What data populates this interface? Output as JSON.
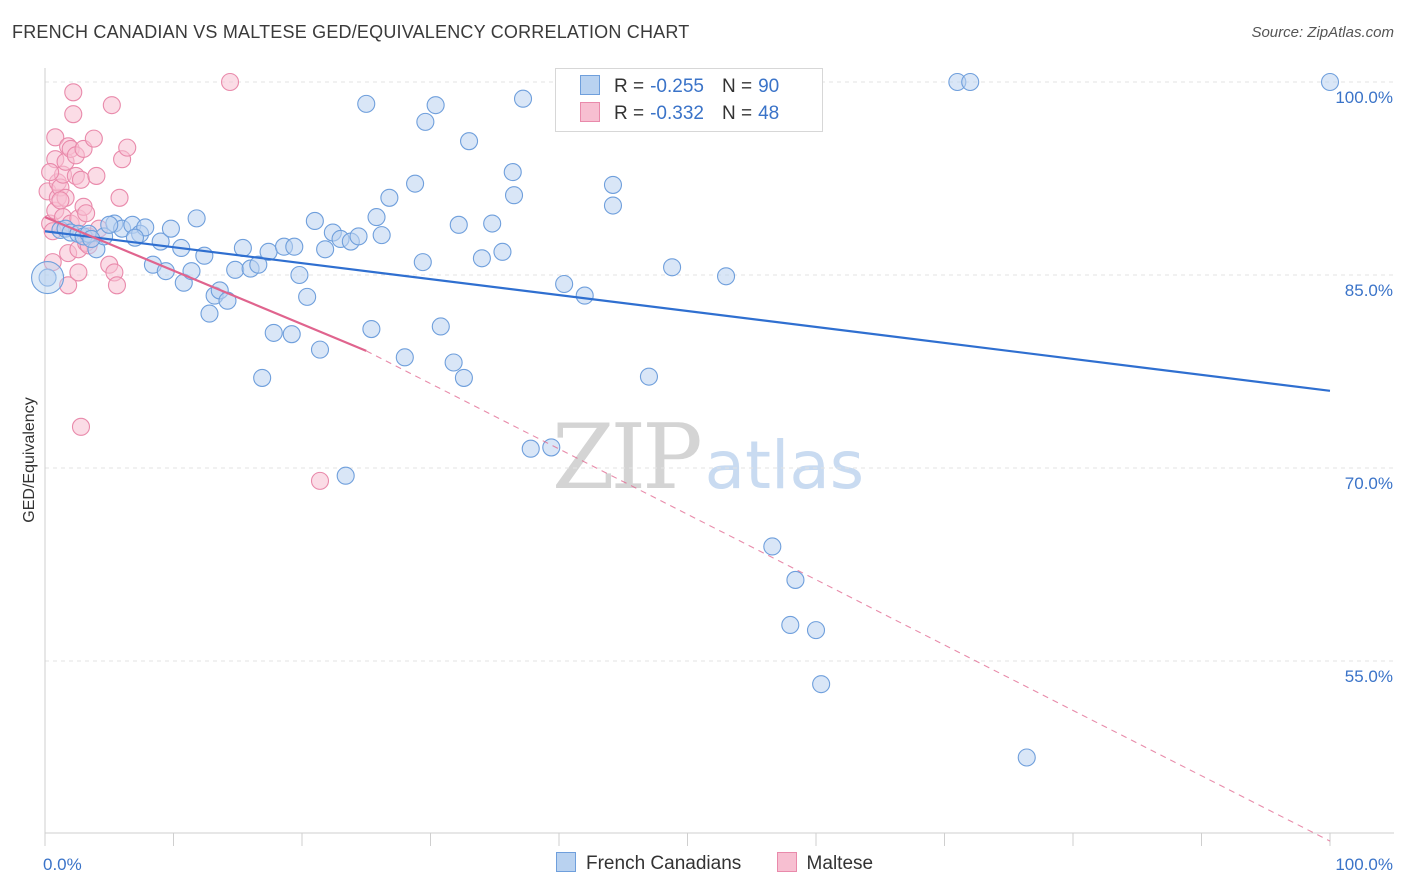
{
  "title": "FRENCH CANADIAN VS MALTESE GED/EQUIVALENCY CORRELATION CHART",
  "source": "Source: ZipAtlas.com",
  "watermark": {
    "zip": "ZIP",
    "atlas": "atlas"
  },
  "legend": {
    "rows": [
      {
        "r_label": "R =",
        "r_value": "-0.255",
        "n_label": "N =",
        "n_value": "90"
      },
      {
        "r_label": "R =",
        "r_value": "-0.332",
        "n_label": "N =",
        "n_value": "48"
      }
    ]
  },
  "bottom_legend": [
    "French Canadians",
    "Maltese"
  ],
  "colors": {
    "blue_fill": "#b9d2f0",
    "blue_stroke": "#6f9fdc",
    "blue_line": "#2f6fd0",
    "pink_fill": "#f7bfd1",
    "pink_stroke": "#e98aab",
    "pink_line": "#e0648e",
    "tick_label": "#3a73c8",
    "grid": "#e3e3e3"
  },
  "chart_data": {
    "type": "scatter",
    "title": "FRENCH CANADIAN VS MALTESE GED/EQUIVALENCY CORRELATION CHART",
    "xlabel": "",
    "ylabel": "GED/Equivalency",
    "xlim": [
      0,
      100
    ],
    "ylim": [
      40,
      101.5
    ],
    "x_tick_labels": [
      "0.0%",
      "100.0%"
    ],
    "y_ticks": [
      100,
      85,
      70,
      55
    ],
    "y_tick_labels": [
      "100.0%",
      "85.0%",
      "70.0%",
      "55.0%"
    ],
    "grid": true,
    "legend_position": "top-center",
    "series": [
      {
        "name": "French Canadians",
        "R": -0.255,
        "N": 90,
        "trend": {
          "x": [
            0,
            100
          ],
          "y": [
            88.4,
            76.0
          ],
          "style": "solid"
        },
        "points": [
          [
            0.2,
            84.8
          ],
          [
            1.2,
            88.5
          ],
          [
            1.6,
            88.6
          ],
          [
            2.0,
            88.3
          ],
          [
            2.6,
            88.2
          ],
          [
            3.0,
            88.0
          ],
          [
            3.4,
            88.2
          ],
          [
            4.0,
            87.0
          ],
          [
            4.6,
            88.0
          ],
          [
            5.4,
            89.0
          ],
          [
            6.0,
            88.6
          ],
          [
            6.8,
            88.9
          ],
          [
            7.4,
            88.2
          ],
          [
            7.8,
            88.7
          ],
          [
            8.4,
            85.8
          ],
          [
            9.0,
            87.6
          ],
          [
            9.4,
            85.3
          ],
          [
            9.8,
            88.6
          ],
          [
            10.6,
            87.1
          ],
          [
            10.8,
            84.4
          ],
          [
            11.4,
            85.3
          ],
          [
            11.8,
            89.4
          ],
          [
            12.4,
            86.5
          ],
          [
            12.8,
            82.0
          ],
          [
            13.2,
            83.4
          ],
          [
            13.6,
            83.8
          ],
          [
            14.2,
            83.0
          ],
          [
            14.8,
            85.4
          ],
          [
            15.4,
            87.1
          ],
          [
            16.0,
            85.5
          ],
          [
            16.6,
            85.8
          ],
          [
            16.9,
            77.0
          ],
          [
            17.4,
            86.8
          ],
          [
            17.8,
            80.5
          ],
          [
            18.6,
            87.2
          ],
          [
            19.2,
            80.4
          ],
          [
            19.4,
            87.2
          ],
          [
            19.8,
            85.0
          ],
          [
            20.4,
            83.3
          ],
          [
            21.0,
            89.2
          ],
          [
            21.4,
            79.2
          ],
          [
            21.8,
            87.0
          ],
          [
            22.4,
            88.3
          ],
          [
            23.0,
            87.8
          ],
          [
            23.4,
            69.4
          ],
          [
            23.8,
            87.6
          ],
          [
            24.4,
            88.0
          ],
          [
            25.0,
            98.3
          ],
          [
            25.4,
            80.8
          ],
          [
            25.8,
            89.5
          ],
          [
            26.2,
            88.1
          ],
          [
            26.8,
            91.0
          ],
          [
            28.0,
            78.6
          ],
          [
            28.8,
            92.1
          ],
          [
            29.4,
            86.0
          ],
          [
            29.6,
            96.9
          ],
          [
            30.4,
            98.2
          ],
          [
            30.8,
            81.0
          ],
          [
            31.8,
            78.2
          ],
          [
            32.2,
            88.9
          ],
          [
            32.6,
            77.0
          ],
          [
            33.0,
            95.4
          ],
          [
            34.0,
            86.3
          ],
          [
            34.8,
            89.0
          ],
          [
            35.6,
            86.8
          ],
          [
            36.4,
            93.0
          ],
          [
            36.5,
            91.2
          ],
          [
            37.2,
            98.7
          ],
          [
            37.8,
            71.5
          ],
          [
            39.4,
            71.6
          ],
          [
            40.4,
            84.3
          ],
          [
            42.0,
            83.4
          ],
          [
            44.2,
            92.0
          ],
          [
            44.2,
            90.4
          ],
          [
            47.0,
            77.1
          ],
          [
            47.8,
            100.0
          ],
          [
            48.8,
            85.6
          ],
          [
            53.0,
            84.9
          ],
          [
            56.6,
            63.9
          ],
          [
            58.0,
            57.8
          ],
          [
            58.4,
            61.3
          ],
          [
            60.0,
            57.4
          ],
          [
            60.4,
            53.2
          ],
          [
            71.0,
            100.0
          ],
          [
            72.0,
            100.0
          ],
          [
            76.4,
            47.5
          ],
          [
            100.0,
            100.0
          ],
          [
            3.6,
            87.8
          ],
          [
            5.0,
            88.9
          ],
          [
            7.0,
            87.9
          ]
        ]
      },
      {
        "name": "Maltese",
        "R": -0.332,
        "N": 48,
        "trend": {
          "x": [
            0,
            25
          ],
          "y": [
            89.5,
            79.1
          ],
          "style": "solid",
          "extended_to": [
            100,
            41.0
          ],
          "extended_style": "dashed"
        },
        "points": [
          [
            0.2,
            91.5
          ],
          [
            0.4,
            89.0
          ],
          [
            0.6,
            88.4
          ],
          [
            0.8,
            90.0
          ],
          [
            0.8,
            94.0
          ],
          [
            0.8,
            95.7
          ],
          [
            1.0,
            91.0
          ],
          [
            1.0,
            92.2
          ],
          [
            1.2,
            91.8
          ],
          [
            1.4,
            89.5
          ],
          [
            1.4,
            92.8
          ],
          [
            1.6,
            91.0
          ],
          [
            1.6,
            93.8
          ],
          [
            1.8,
            86.7
          ],
          [
            1.8,
            84.2
          ],
          [
            1.8,
            95.0
          ],
          [
            2.0,
            94.8
          ],
          [
            2.0,
            89.0
          ],
          [
            2.2,
            97.5
          ],
          [
            2.2,
            99.2
          ],
          [
            2.4,
            94.3
          ],
          [
            2.4,
            92.7
          ],
          [
            2.6,
            85.2
          ],
          [
            2.6,
            87.0
          ],
          [
            2.6,
            89.4
          ],
          [
            2.8,
            92.4
          ],
          [
            2.8,
            73.2
          ],
          [
            3.0,
            90.3
          ],
          [
            3.0,
            94.8
          ],
          [
            3.2,
            87.5
          ],
          [
            3.2,
            89.8
          ],
          [
            3.4,
            88.0
          ],
          [
            3.4,
            87.3
          ],
          [
            3.8,
            95.6
          ],
          [
            4.0,
            92.7
          ],
          [
            5.0,
            85.8
          ],
          [
            5.2,
            98.2
          ],
          [
            5.4,
            85.2
          ],
          [
            5.6,
            84.2
          ],
          [
            5.8,
            91.0
          ],
          [
            6.0,
            94.0
          ],
          [
            6.4,
            94.9
          ],
          [
            14.4,
            100.0
          ],
          [
            21.4,
            69.0
          ],
          [
            0.4,
            93.0
          ],
          [
            0.6,
            86.0
          ],
          [
            1.2,
            90.8
          ],
          [
            4.2,
            88.6
          ]
        ]
      }
    ]
  }
}
